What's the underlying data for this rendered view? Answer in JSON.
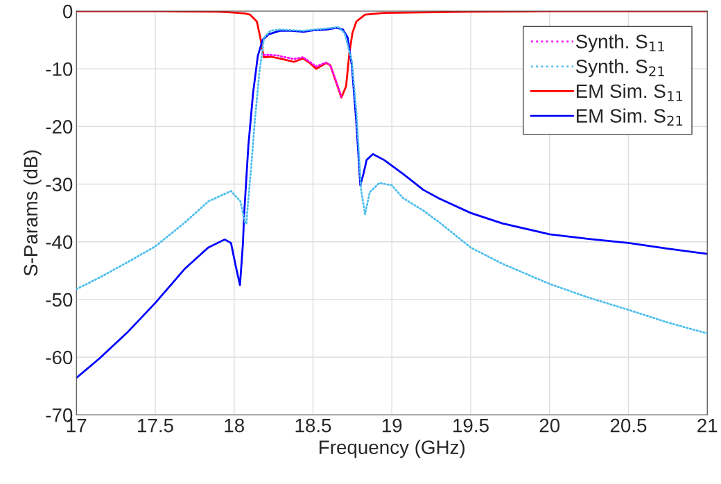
{
  "chart_data": {
    "type": "line",
    "xlabel": "Frequency (GHz)",
    "ylabel": "S-Params (dB)",
    "xlim": [
      17,
      21
    ],
    "ylim": [
      -70,
      0
    ],
    "xticks": [
      17,
      17.5,
      18,
      18.5,
      19,
      19.5,
      20,
      20.5,
      21
    ],
    "yticks": [
      -70,
      -60,
      -50,
      -40,
      -30,
      -20,
      -10,
      0
    ],
    "grid": true,
    "legend": "top right",
    "marker": "none",
    "series": [
      {
        "name": "Synth. S$_{11}$",
        "color": "#ff00ff",
        "line_style": "dotted",
        "x": [
          18.188,
          18.232,
          18.28,
          18.305,
          18.379,
          18.437,
          18.48,
          18.52,
          18.584,
          18.61,
          18.65,
          18.68
        ],
        "values": [
          -7.6,
          -7.6,
          -7.7,
          -7.9,
          -8.3,
          -8.0,
          -8.8,
          -9.6,
          -8.9,
          -9.4,
          -12.4,
          -14.8
        ]
      },
      {
        "name": "Synth. S$_{21}$",
        "color": "#4dbeee",
        "line_style": "dotted",
        "x": [
          17.0,
          17.147,
          17.32,
          17.5,
          17.69,
          17.836,
          17.98,
          18.04,
          18.07,
          18.078,
          18.085,
          18.107,
          18.13,
          18.16,
          18.19,
          18.23,
          18.29,
          18.44,
          18.585,
          18.66,
          18.7,
          18.746,
          18.775,
          18.805,
          18.83,
          18.86,
          18.92,
          19.0,
          19.07,
          19.2,
          19.3,
          19.5,
          19.7,
          20.0,
          20.25,
          20.5,
          20.75,
          21.0
        ],
        "values": [
          -48.2,
          -46.2,
          -43.6,
          -40.8,
          -36.6,
          -33,
          -31.2,
          -33,
          -36.8,
          -36.8,
          -34.2,
          -27.4,
          -19.4,
          -10.6,
          -4.6,
          -3.4,
          -3.2,
          -3.4,
          -3.0,
          -2.8,
          -3.8,
          -8.6,
          -17.4,
          -31,
          -35.2,
          -31.4,
          -29.8,
          -30.2,
          -32.4,
          -34.6,
          -36.6,
          -41,
          -43.8,
          -47.3,
          -49.7,
          -51.8,
          -54,
          -55.9
        ]
      },
      {
        "name": "EM Sim. S$_{11}$",
        "color": "#ff0000",
        "line_style": "solid",
        "x": [
          17,
          17.5,
          17.9,
          17.965,
          18.07,
          18.1,
          18.144,
          18.166,
          18.188,
          18.232,
          18.305,
          18.379,
          18.437,
          18.48,
          18.52,
          18.584,
          18.61,
          18.65,
          18.68,
          18.71,
          18.73,
          18.75,
          18.775,
          18.83,
          18.95,
          19.5,
          20,
          21
        ],
        "values": [
          0,
          0,
          -0.1,
          -0.2,
          -0.4,
          -0.6,
          -1.8,
          -4.6,
          -8.0,
          -7.9,
          -8.3,
          -8.8,
          -8.2,
          -9.0,
          -10,
          -9.0,
          -9.4,
          -12.6,
          -15,
          -13,
          -7.4,
          -3.8,
          -1.8,
          -0.6,
          -0.3,
          -0.1,
          0,
          0
        ]
      },
      {
        "name": "EM Sim. S$_{21}$",
        "color": "#0000ff",
        "line_style": "solid",
        "x": [
          17.0,
          17.147,
          17.32,
          17.5,
          17.69,
          17.836,
          17.94,
          17.98,
          18.01,
          18.037,
          18.056,
          18.063,
          18.09,
          18.12,
          18.15,
          18.18,
          18.22,
          18.29,
          18.364,
          18.44,
          18.51,
          18.585,
          18.65,
          18.69,
          18.72,
          18.746,
          18.775,
          18.8,
          18.82,
          18.84,
          18.88,
          18.95,
          19.07,
          19.2,
          19.3,
          19.5,
          19.7,
          20.0,
          20.25,
          20.5,
          20.75,
          21.0
        ],
        "values": [
          -63.6,
          -60.2,
          -55.8,
          -50.6,
          -44.6,
          -41,
          -39.6,
          -40.2,
          -44.2,
          -47.5,
          -40.2,
          -35.4,
          -23.4,
          -14.2,
          -7.8,
          -5,
          -4.0,
          -3.4,
          -3.4,
          -3.6,
          -3.3,
          -3.2,
          -2.9,
          -3.2,
          -4.6,
          -9.4,
          -19.4,
          -30.2,
          -28.2,
          -25.8,
          -24.8,
          -25.8,
          -28.2,
          -31,
          -32.5,
          -35,
          -36.8,
          -38.7,
          -39.5,
          -40.2,
          -41.2,
          -42.1
        ]
      }
    ]
  }
}
